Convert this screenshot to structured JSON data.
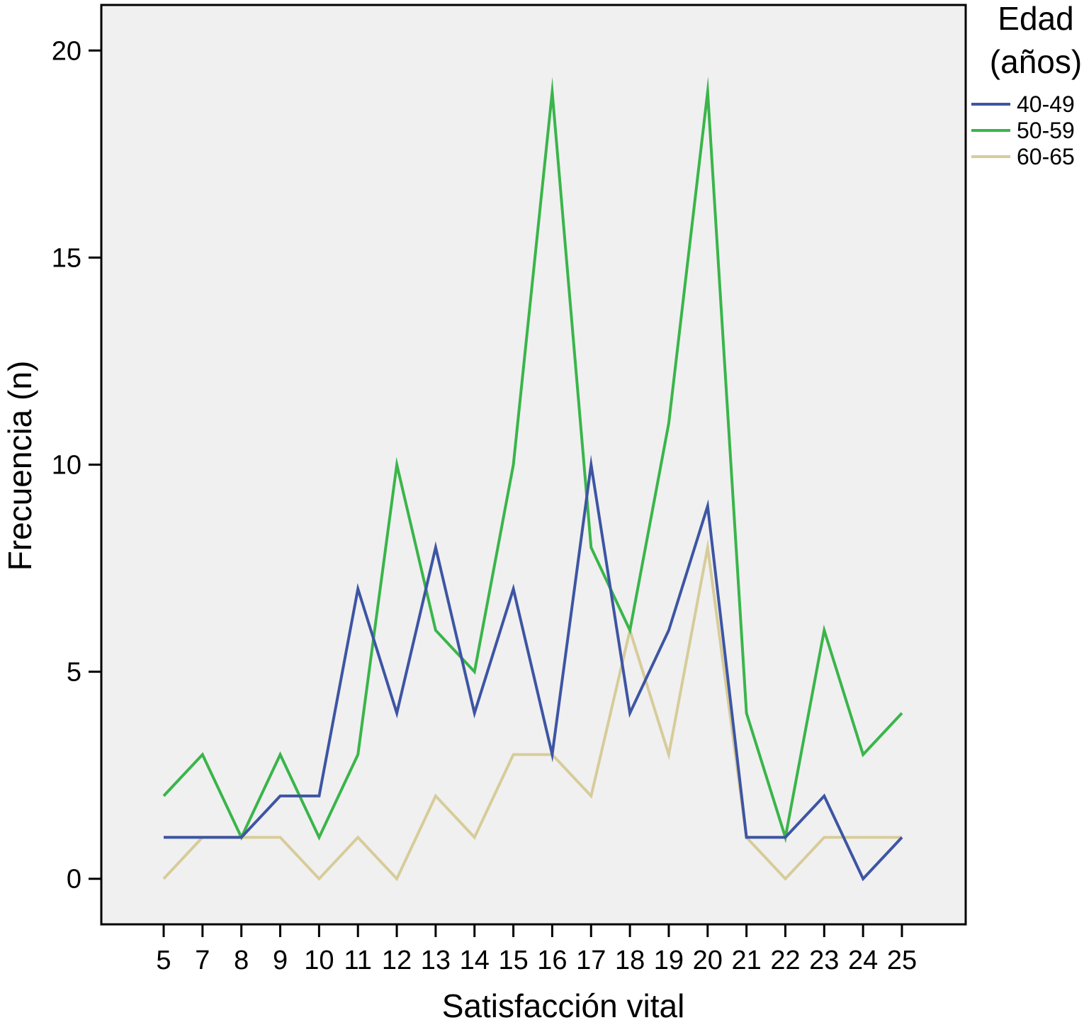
{
  "chart_data": {
    "type": "line",
    "title": "",
    "xlabel": "Satisfacción vital",
    "ylabel": "Frecuencia (n)",
    "ylim": [
      -1.1,
      21.1
    ],
    "yticks": [
      0,
      5,
      10,
      15,
      20
    ],
    "grid": false,
    "legend_position": "top-right",
    "legend_title": [
      "Edad",
      "(años)"
    ],
    "background_color": "#f0f0f0",
    "x": [
      "5",
      "7",
      "8",
      "9",
      "10",
      "11",
      "12",
      "13",
      "14",
      "15",
      "16",
      "17",
      "18",
      "19",
      "20",
      "21",
      "22",
      "23",
      "24",
      "25"
    ],
    "series": [
      {
        "name": "40-49",
        "color": "#3d55a3",
        "values": [
          1,
          1,
          1,
          2,
          2,
          7,
          4,
          8,
          4,
          7,
          3,
          10,
          4,
          6,
          9,
          1,
          1,
          2,
          0,
          1
        ]
      },
      {
        "name": "50-59",
        "color": "#3ab54a",
        "values": [
          2,
          3,
          1,
          3,
          1,
          3,
          10,
          6,
          5,
          10,
          19,
          8,
          6,
          11,
          19,
          4,
          1,
          6,
          3,
          4
        ]
      },
      {
        "name": "60-65",
        "color": "#d7cc9a",
        "values": [
          0,
          1,
          1,
          1,
          0,
          1,
          0,
          2,
          1,
          3,
          3,
          2,
          6,
          3,
          8,
          1,
          0,
          1,
          1,
          1
        ]
      }
    ]
  }
}
